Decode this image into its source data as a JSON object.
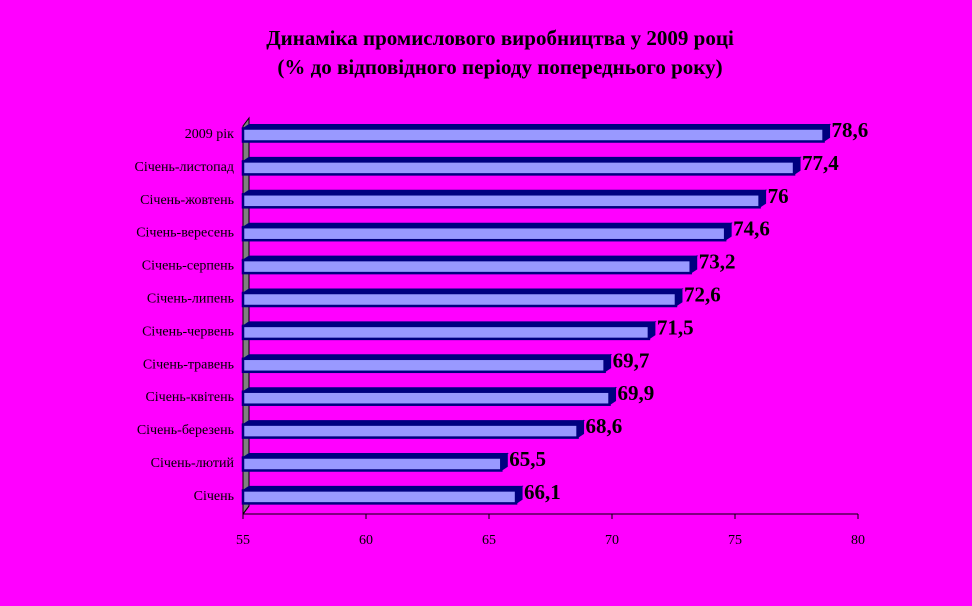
{
  "chart_data": {
    "type": "bar",
    "orientation": "horizontal",
    "title": "Динаміка промислового виробництва у 2009 році",
    "subtitle": "(% до відповідного періоду попереднього року)",
    "categories": [
      "2009 рік",
      "Січень-листопад",
      "Січень-жовтень",
      "Січень-вересень",
      "Січень-серпень",
      "Січень-липень",
      "Січень-червень",
      "Січень-травень",
      "Січень-квітень",
      "Січень-березень",
      "Січень-лютий",
      "Січень"
    ],
    "values": [
      78.6,
      77.4,
      76,
      74.6,
      73.2,
      72.6,
      71.5,
      69.7,
      69.9,
      68.6,
      65.5,
      66.1
    ],
    "data_labels": [
      "78,6",
      "77,4",
      "76",
      "74,6",
      "73,2",
      "72,6",
      "71,5",
      "69,7",
      "69,9",
      "68,6",
      "65,5",
      "66,1"
    ],
    "xlim": [
      55,
      80
    ],
    "xticks": [
      55,
      60,
      65,
      70,
      75,
      80
    ],
    "xlabel": "",
    "ylabel": "",
    "grid": false,
    "legend": "none"
  },
  "colors": {
    "background": "#FF00FF",
    "bar_fill": "#9999FF",
    "bar_edge": "#000080",
    "wall": "#808080",
    "axis": "#000000"
  }
}
